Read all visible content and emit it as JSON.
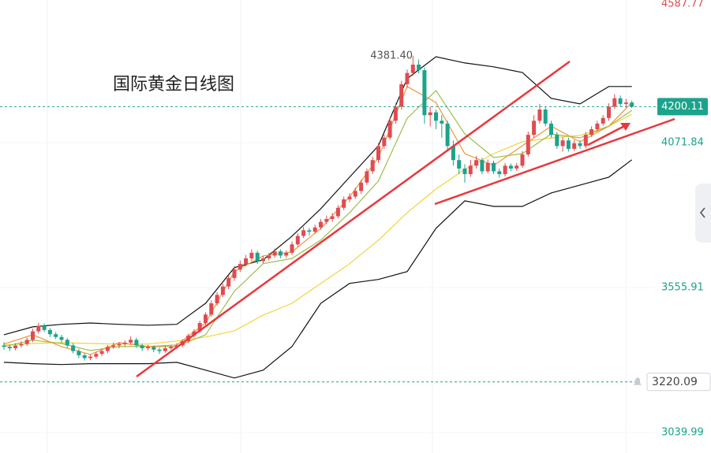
{
  "chart_data": {
    "type": "candlestick",
    "title": "国际黄金日线图",
    "up_color": "#e04b51",
    "down_color": "#1ba38c",
    "ylim": [
      2967,
      4580
    ],
    "yticks": [
      3039.99,
      3555.91,
      4071.84,
      4587.77
    ],
    "grid": true,
    "last_price": 4200.11,
    "alert_price": 3220.09,
    "high_label": {
      "value": 4381.4,
      "label": "4381.40"
    },
    "candles": [
      [
        3350,
        3362,
        3335,
        3345
      ],
      [
        3345,
        3352,
        3330,
        3340
      ],
      [
        3340,
        3358,
        3332,
        3350
      ],
      [
        3350,
        3365,
        3342,
        3355
      ],
      [
        3355,
        3378,
        3348,
        3370
      ],
      [
        3370,
        3410,
        3362,
        3400
      ],
      [
        3400,
        3430,
        3392,
        3420
      ],
      [
        3420,
        3428,
        3398,
        3405
      ],
      [
        3405,
        3412,
        3380,
        3390
      ],
      [
        3390,
        3398,
        3372,
        3380
      ],
      [
        3380,
        3388,
        3360,
        3370
      ],
      [
        3370,
        3376,
        3342,
        3350
      ],
      [
        3350,
        3358,
        3322,
        3330
      ],
      [
        3330,
        3338,
        3305,
        3315
      ],
      [
        3315,
        3322,
        3296,
        3305
      ],
      [
        3305,
        3318,
        3298,
        3310
      ],
      [
        3310,
        3328,
        3302,
        3320
      ],
      [
        3320,
        3338,
        3312,
        3330
      ],
      [
        3330,
        3352,
        3322,
        3345
      ],
      [
        3345,
        3360,
        3338,
        3350
      ],
      [
        3350,
        3362,
        3340,
        3355
      ],
      [
        3355,
        3368,
        3346,
        3360
      ],
      [
        3360,
        3382,
        3352,
        3370
      ],
      [
        3370,
        3378,
        3342,
        3350
      ],
      [
        3350,
        3356,
        3330,
        3340
      ],
      [
        3340,
        3352,
        3332,
        3345
      ],
      [
        3345,
        3350,
        3326,
        3335
      ],
      [
        3335,
        3342,
        3320,
        3330
      ],
      [
        3330,
        3348,
        3324,
        3340
      ],
      [
        3340,
        3352,
        3334,
        3345
      ],
      [
        3345,
        3358,
        3338,
        3350
      ],
      [
        3350,
        3372,
        3344,
        3365
      ],
      [
        3365,
        3392,
        3358,
        3385
      ],
      [
        3385,
        3408,
        3378,
        3400
      ],
      [
        3400,
        3438,
        3394,
        3430
      ],
      [
        3430,
        3468,
        3424,
        3460
      ],
      [
        3460,
        3510,
        3452,
        3500
      ],
      [
        3500,
        3540,
        3492,
        3530
      ],
      [
        3530,
        3570,
        3522,
        3560
      ],
      [
        3560,
        3600,
        3550,
        3590
      ],
      [
        3590,
        3632,
        3580,
        3620
      ],
      [
        3620,
        3652,
        3612,
        3640
      ],
      [
        3640,
        3672,
        3632,
        3660
      ],
      [
        3660,
        3692,
        3650,
        3680
      ],
      [
        3680,
        3688,
        3640,
        3650
      ],
      [
        3650,
        3668,
        3642,
        3660
      ],
      [
        3660,
        3680,
        3652,
        3670
      ],
      [
        3670,
        3695,
        3662,
        3685
      ],
      [
        3685,
        3692,
        3660,
        3670
      ],
      [
        3670,
        3688,
        3662,
        3680
      ],
      [
        3680,
        3720,
        3672,
        3710
      ],
      [
        3710,
        3750,
        3702,
        3740
      ],
      [
        3740,
        3772,
        3732,
        3760
      ],
      [
        3760,
        3768,
        3742,
        3755
      ],
      [
        3755,
        3780,
        3748,
        3770
      ],
      [
        3770,
        3800,
        3762,
        3790
      ],
      [
        3790,
        3812,
        3782,
        3800
      ],
      [
        3800,
        3822,
        3790,
        3810
      ],
      [
        3810,
        3850,
        3802,
        3840
      ],
      [
        3840,
        3880,
        3832,
        3870
      ],
      [
        3870,
        3892,
        3860,
        3880
      ],
      [
        3880,
        3912,
        3872,
        3900
      ],
      [
        3900,
        3940,
        3890,
        3930
      ],
      [
        3930,
        3980,
        3922,
        3970
      ],
      [
        3970,
        4022,
        3960,
        4010
      ],
      [
        4010,
        4070,
        4000,
        4060
      ],
      [
        4060,
        4102,
        4050,
        4090
      ],
      [
        4090,
        4162,
        4082,
        4150
      ],
      [
        4150,
        4212,
        4140,
        4200
      ],
      [
        4200,
        4292,
        4190,
        4280
      ],
      [
        4280,
        4332,
        4268,
        4320
      ],
      [
        4320,
        4381.4,
        4310,
        4350
      ],
      [
        4350,
        4368,
        4318,
        4330
      ],
      [
        4330,
        4340,
        4140,
        4170
      ],
      [
        4170,
        4200,
        4130,
        4180
      ],
      [
        4180,
        4190,
        4120,
        4150
      ],
      [
        4150,
        4170,
        4090,
        4140
      ],
      [
        4140,
        4150,
        4040,
        4060
      ],
      [
        4060,
        4080,
        3990,
        4010
      ],
      [
        4010,
        4030,
        3960,
        3980
      ],
      [
        3980,
        3995,
        3930,
        3960
      ],
      [
        3960,
        4010,
        3950,
        3990
      ],
      [
        3990,
        4025,
        3980,
        4010
      ],
      [
        4010,
        4018,
        3960,
        3970
      ],
      [
        3970,
        4012,
        3962,
        4000
      ],
      [
        4000,
        4008,
        3960,
        3970
      ],
      [
        3970,
        3980,
        3948,
        3960
      ],
      [
        3960,
        4000,
        3952,
        3990
      ],
      [
        3990,
        3998,
        3970,
        3980
      ],
      [
        3980,
        4000,
        3972,
        3990
      ],
      [
        3990,
        4042,
        3982,
        4030
      ],
      [
        4030,
        4112,
        4022,
        4100
      ],
      [
        4100,
        4170,
        4090,
        4150
      ],
      [
        4150,
        4210,
        4140,
        4190
      ],
      [
        4190,
        4198,
        4130,
        4140
      ],
      [
        4140,
        4150,
        4090,
        4100
      ],
      [
        4100,
        4110,
        4050,
        4060
      ],
      [
        4060,
        4092,
        4040,
        4080
      ],
      [
        4080,
        4090,
        4040,
        4050
      ],
      [
        4050,
        4082,
        4042,
        4070
      ],
      [
        4070,
        4080,
        4050,
        4060
      ],
      [
        4060,
        4110,
        4052,
        4100
      ],
      [
        4100,
        4130,
        4092,
        4120
      ],
      [
        4120,
        4150,
        4112,
        4140
      ],
      [
        4140,
        4170,
        4132,
        4160
      ],
      [
        4160,
        4212,
        4150,
        4200
      ],
      [
        4200,
        4245,
        4192,
        4230
      ],
      [
        4230,
        4240,
        4200,
        4210
      ],
      [
        4210,
        4228,
        4198,
        4215
      ],
      [
        4215,
        4222,
        4195,
        4200.11
      ]
    ],
    "line_x": [
      0,
      5,
      10,
      15,
      20,
      25,
      30,
      35,
      40,
      45,
      50,
      55,
      60,
      65,
      70,
      75,
      80,
      85,
      90,
      95,
      100,
      105,
      109
    ],
    "series": [
      {
        "color": "#111111",
        "values": [
          3388,
          3416,
          3425,
          3430,
          3425,
          3422,
          3425,
          3500,
          3627,
          3655,
          3739,
          3837,
          3949,
          4061,
          4300,
          4378,
          4356,
          4342,
          4322,
          4230,
          4210,
          4272,
          4272
        ]
      },
      {
        "color": "#111111",
        "values": [
          3290,
          3285,
          3282,
          3285,
          3285,
          3285,
          3290,
          3262,
          3234,
          3262,
          3346,
          3500,
          3571,
          3585,
          3613,
          3767,
          3865,
          3845,
          3845,
          3893,
          3921,
          3949,
          4011
        ]
      },
      {
        "color": "#f2d33a",
        "values": [
          3352,
          3357,
          3360,
          3357,
          3355,
          3355,
          3366,
          3380,
          3402,
          3458,
          3500,
          3571,
          3641,
          3725,
          3823,
          3907,
          3977,
          4033,
          4075,
          4089,
          4098,
          4131,
          4173
        ]
      },
      {
        "color": "#9bbf4a",
        "values": [
          3346,
          3369,
          3357,
          3332,
          3346,
          3346,
          3346,
          3388,
          3543,
          3641,
          3660,
          3725,
          3823,
          3935,
          4159,
          4257,
          4103,
          4019,
          4033,
          4103,
          4089,
          4131,
          4187
        ]
      },
      {
        "color": "#f0953a",
        "values": [
          3355,
          3388,
          3346,
          3318,
          3360,
          3346,
          3352,
          3430,
          3613,
          3669,
          3683,
          3767,
          3879,
          4019,
          4272,
          4215,
          4033,
          3991,
          4061,
          4131,
          4075,
          4131,
          4215
        ]
      }
    ]
  }
}
